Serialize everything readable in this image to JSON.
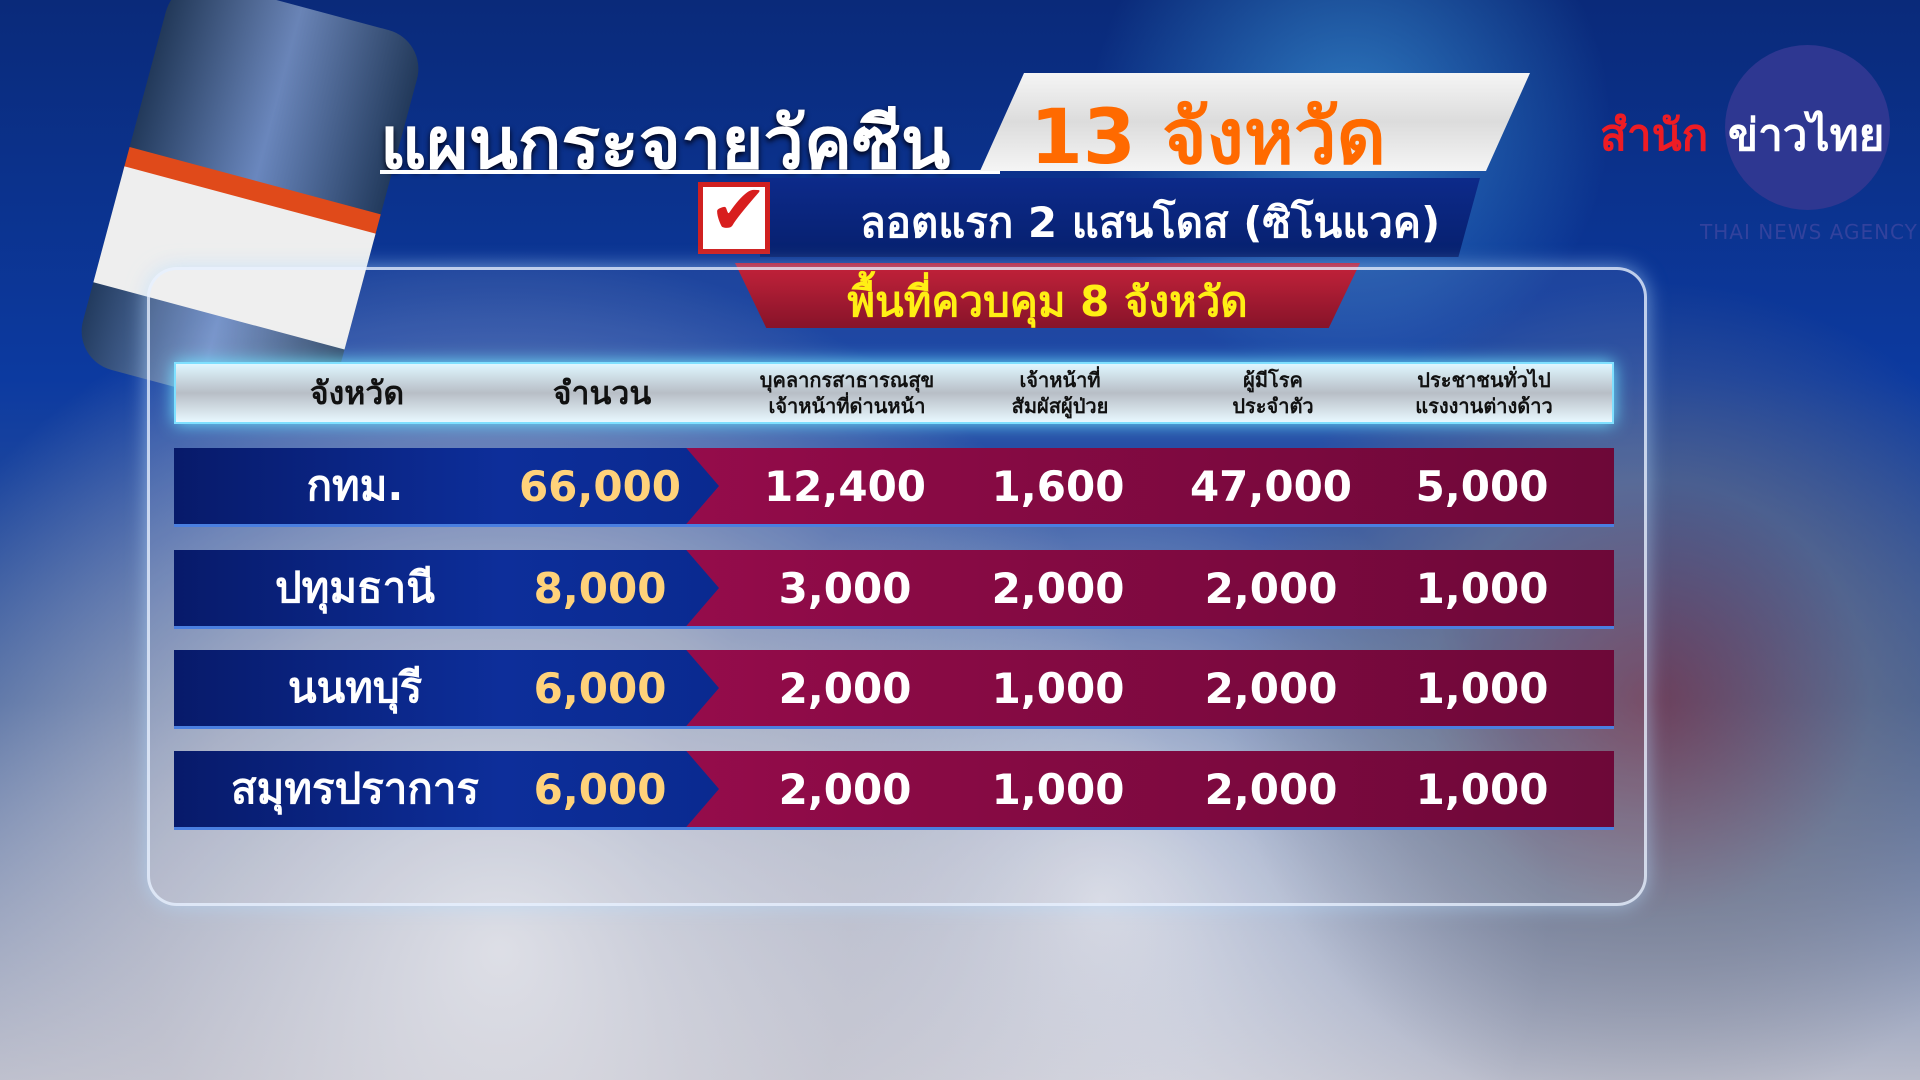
{
  "header": {
    "title": "แผนกระจายวัคซีน",
    "highlight": "13 จังหวัด",
    "subtitle": "ลอตแรก 2 แสนโดส  (ซิโนแวค)",
    "check_icon": "checkmark-icon",
    "area": "พื้นที่ควบคุม 8 จังหวัด"
  },
  "logo": {
    "red": "สำนัก",
    "white": "ข่าวไทย",
    "en": "THAI NEWS AGENCY"
  },
  "table": {
    "columns": [
      {
        "l1": "จังหวัด"
      },
      {
        "l1": "จำนวน"
      },
      {
        "l1": "บุคลากรสาธารณสุข",
        "l2": "เจ้าหน้าที่ด่านหน้า"
      },
      {
        "l1": "เจ้าหน้าที่",
        "l2": "สัมผัสผู้ป่วย"
      },
      {
        "l1": "ผู้มีโรค",
        "l2": "ประจำตัว"
      },
      {
        "l1": "ประชาชนทั่วไป",
        "l2": "แรงงานต่างด้าว"
      }
    ],
    "rows": [
      [
        "กทม.",
        "66,000",
        "12,400",
        "1,600",
        "47,000",
        "5,000"
      ],
      [
        "ปทุมธานี",
        "8,000",
        "3,000",
        "2,000",
        "2,000",
        "1,000"
      ],
      [
        "นนทบุรี",
        "6,000",
        "2,000",
        "1,000",
        "2,000",
        "1,000"
      ],
      [
        "สมุทรปราการ",
        "6,000",
        "2,000",
        "1,000",
        "2,000",
        "1,000"
      ]
    ]
  },
  "colors": {
    "orange": "#ff6a00",
    "yellow": "#ffee00",
    "navy": "#0d2a8a",
    "maroon": "#8a0a45",
    "logo_red": "#ee1c24",
    "logo_circle": "#2e3791"
  }
}
